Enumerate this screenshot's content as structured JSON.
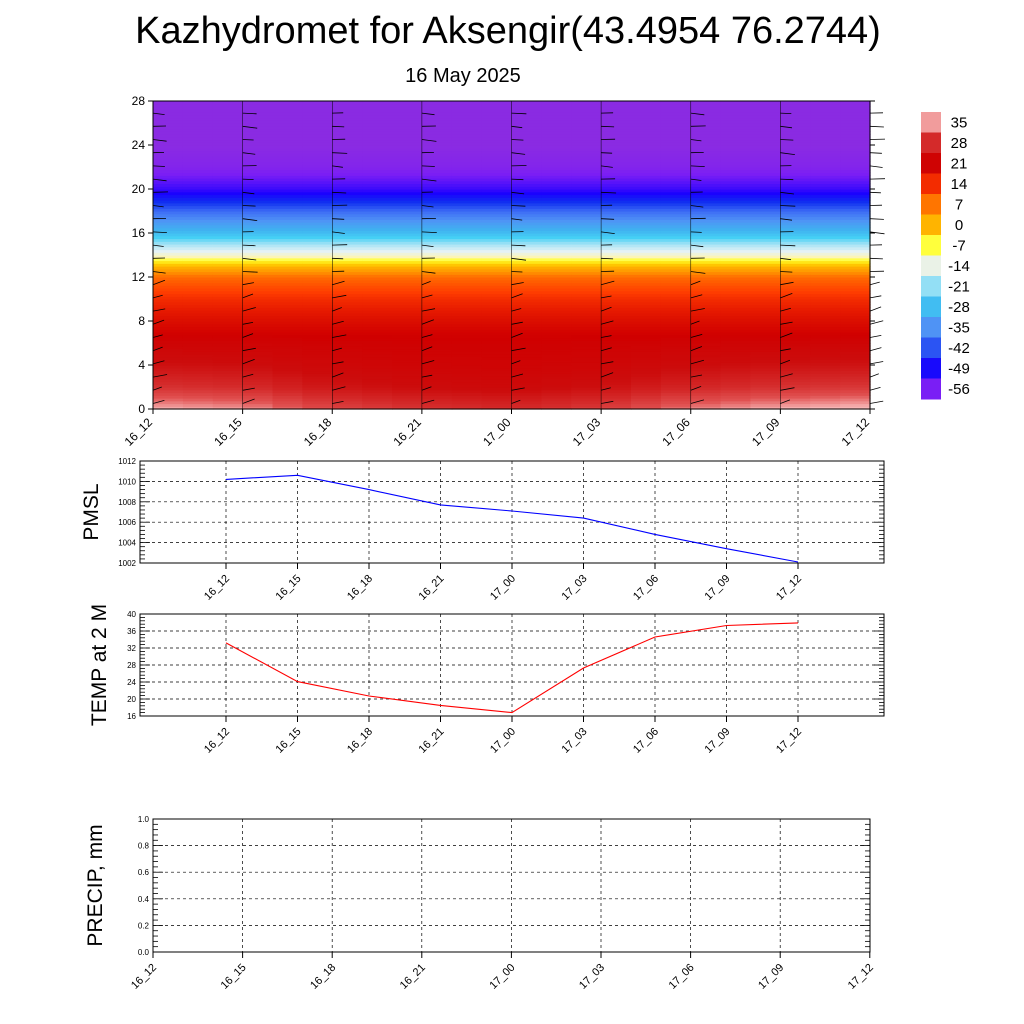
{
  "header": {
    "title": "Kazhydromet for Aksengir(43.4954 76.2744)",
    "subtitle": "16 May 2025"
  },
  "chart_data": [
    {
      "type": "heatmap",
      "time_labels": [
        "16_12",
        "16_15",
        "16_18",
        "16_21",
        "17_00",
        "17_03",
        "17_06",
        "17_09",
        "17_12"
      ],
      "ylim": [
        0,
        28
      ],
      "yticks": [
        "0",
        "4",
        "8",
        "12",
        "16",
        "20",
        "24",
        "28"
      ],
      "grid": false,
      "colorbar": {
        "labels": [
          "35",
          "28",
          "21",
          "14",
          "7",
          "0",
          "-7",
          "-14",
          "-21",
          "-28",
          "-35",
          "-42",
          "-49",
          "-56"
        ],
        "values": [
          35,
          28,
          21,
          14,
          7,
          0,
          -7,
          -14,
          -21,
          -28,
          -35,
          -42,
          -49,
          -56
        ],
        "legend_position": "right"
      },
      "temperature_profile": {
        "heights": [
          0,
          2,
          4,
          6,
          8,
          10,
          12,
          13,
          14,
          16,
          18,
          20,
          22,
          24,
          28
        ],
        "values": [
          32,
          26,
          23,
          21,
          18,
          14,
          8,
          0,
          -12,
          -28,
          -40,
          -52,
          -58,
          -60,
          -60
        ]
      }
    },
    {
      "type": "line",
      "ylabel": "PMSL",
      "ylim": [
        1002,
        1012
      ],
      "yticks": [
        "1002",
        "1004",
        "1006",
        "1008",
        "1010",
        "1012"
      ],
      "categories": [
        "16_12",
        "16_15",
        "16_18",
        "16_21",
        "17_00",
        "17_03",
        "17_06",
        "17_09",
        "17_12"
      ],
      "series": [
        {
          "values": [
            1010.2,
            1010.6,
            1009.2,
            1007.7,
            1007.1,
            1006.4,
            1004.8,
            1003.4,
            1002.1
          ]
        }
      ],
      "grid": true,
      "color": "#0000ff"
    },
    {
      "type": "line",
      "ylabel": "TEMP at 2 M",
      "ylim": [
        16,
        40
      ],
      "yticks": [
        "16",
        "20",
        "24",
        "28",
        "32",
        "36",
        "40"
      ],
      "categories": [
        "16_12",
        "16_15",
        "16_18",
        "16_21",
        "17_00",
        "17_03",
        "17_06",
        "17_09",
        "17_12"
      ],
      "series": [
        {
          "values": [
            33.2,
            24.1,
            20.7,
            18.5,
            16.8,
            27.3,
            34.6,
            37.3,
            37.9
          ]
        }
      ],
      "grid": true,
      "color": "#ff0000"
    },
    {
      "type": "line",
      "ylabel": "PRECIP, mm",
      "ylim": [
        0,
        1
      ],
      "yticks": [
        "0.0",
        "0.2",
        "0.4",
        "0.6",
        "0.8",
        "1.0"
      ],
      "categories": [
        "16_12",
        "16_15",
        "16_18",
        "16_21",
        "17_00",
        "17_03",
        "17_06",
        "17_09",
        "17_12"
      ],
      "series": [
        {
          "values": [
            0,
            0,
            0,
            0,
            0,
            0,
            0,
            0,
            0
          ]
        }
      ],
      "grid": true,
      "color": "#006400"
    }
  ]
}
